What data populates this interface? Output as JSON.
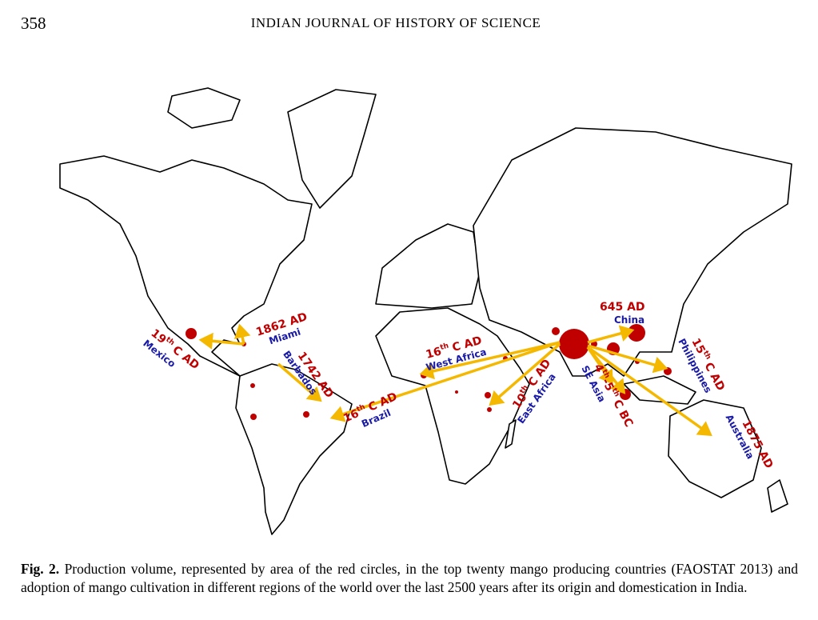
{
  "header": {
    "page_number": "358",
    "journal": "INDIAN JOURNAL OF HISTORY OF SCIENCE"
  },
  "map_labels": [
    {
      "date": [
        "19",
        "th",
        "C AD"
      ],
      "place": "Mexico"
    },
    {
      "date": "1862 AD",
      "place": "Miami"
    },
    {
      "date": "1742 AD",
      "place": "Barbados"
    },
    {
      "date": [
        "16",
        "th",
        "C AD"
      ],
      "place": "Brazil"
    },
    {
      "date": [
        "16",
        "th",
        "C AD"
      ],
      "place": "West Africa"
    },
    {
      "date": [
        "10",
        "th",
        "C AD"
      ],
      "place": "East Africa"
    },
    {
      "date": "645 AD",
      "place": "China"
    },
    {
      "date": [
        "4",
        "th",
        "-5",
        "th",
        "C BC"
      ],
      "place": "SE Asia"
    },
    {
      "date": [
        "15",
        "th",
        "C AD"
      ],
      "place": "Philippines"
    },
    {
      "date": "1875 AD",
      "place": "Australia"
    }
  ],
  "caption": {
    "label": "Fig. 2.",
    "text": "Production volume, represented by area of the red circles, in the top twenty mango producing countries (FAOSTAT 2013) and adoption of mango cultivation in different regions of the world over the last 2500 years after its origin and domestication in India."
  }
}
